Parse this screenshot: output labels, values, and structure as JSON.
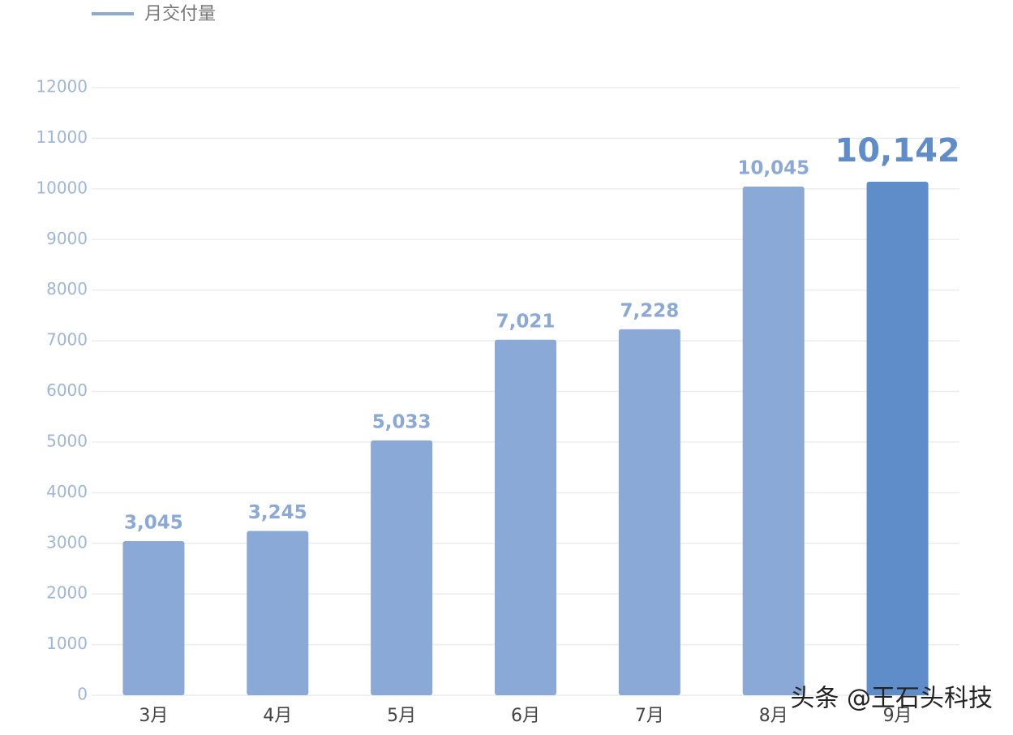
{
  "chart_data": {
    "type": "bar",
    "categories": [
      "3月",
      "4月",
      "5月",
      "6月",
      "7月",
      "8月",
      "9月"
    ],
    "series": [
      {
        "name": "月交付量",
        "color": "#8aa9d6",
        "values": [
          3045,
          3245,
          5033,
          7021,
          7228,
          10045,
          10142
        ],
        "value_labels": [
          "3,045",
          "3,245",
          "5,033",
          "7,021",
          "7,228",
          "10,045",
          "10,142"
        ],
        "colors": [
          "#8aa9d6",
          "#8aa9d6",
          "#8aa9d6",
          "#8aa9d6",
          "#8aa9d6",
          "#8aa9d6",
          "#5f8dc9"
        ]
      }
    ],
    "ylim": [
      0,
      12000
    ],
    "yticks": [
      0,
      1000,
      2000,
      3000,
      4000,
      5000,
      6000,
      7000,
      8000,
      9000,
      10000,
      11000,
      12000
    ],
    "grid": true,
    "legend": "top-left"
  },
  "watermark": "头条 @王石头科技"
}
